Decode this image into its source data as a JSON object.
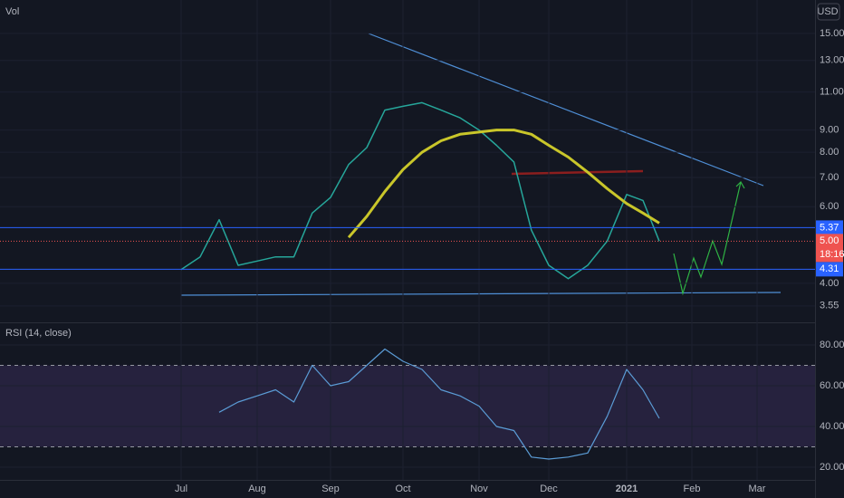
{
  "chart_data": [
    {
      "type": "line",
      "label": "Vol",
      "currency": "USD",
      "log": true,
      "grid": true,
      "categories": [
        "Jul",
        null,
        null,
        null,
        "Aug",
        null,
        null,
        null,
        "Sep",
        null,
        null,
        null,
        "Oct",
        null,
        null,
        null,
        "Nov",
        null,
        null,
        null,
        "Dec",
        null,
        null,
        null,
        "2021",
        null,
        null,
        null,
        "Feb",
        null,
        null,
        null,
        "Mar"
      ],
      "series": [
        {
          "color": "#26a69a",
          "values": [
            4.3,
            4.6,
            5.6,
            4.4,
            4.5,
            4.6,
            4.6,
            5.8,
            6.3,
            7.5,
            8.2,
            10.0,
            10.2,
            10.4,
            10.0,
            9.6,
            9.0,
            8.3,
            7.6,
            5.3,
            4.4,
            4.1,
            4.4,
            5.0,
            6.4,
            6.2,
            5.0,
            null,
            null,
            null,
            null,
            null,
            null
          ]
        },
        {
          "color": "#c9c62a",
          "values": [
            null,
            null,
            null,
            null,
            null,
            null,
            null,
            null,
            null,
            5.1,
            5.7,
            6.5,
            7.3,
            8.0,
            8.5,
            8.8,
            8.9,
            9.0,
            9.0,
            8.8,
            8.3,
            7.8,
            7.2,
            6.6,
            6.1,
            5.8,
            5.5,
            null,
            null,
            null,
            null,
            null,
            null
          ]
        }
      ],
      "ylim": [
        3.27,
        17.9
      ],
      "yticks": [
        {
          "value": 3.55,
          "label": "3.55"
        },
        {
          "value": 4,
          "label": "4.00"
        },
        {
          "value": 6,
          "label": "6.00"
        },
        {
          "value": 7,
          "label": "7.00"
        },
        {
          "value": 8,
          "label": "8.00"
        },
        {
          "value": 9,
          "label": "9.00"
        },
        {
          "value": 11,
          "label": "11.00"
        },
        {
          "value": 13,
          "label": "13.00"
        },
        {
          "value": 15,
          "label": "15.00"
        }
      ],
      "price_levels": [
        {
          "value": 5.37,
          "label": "5.37"
        },
        {
          "value": 4.31,
          "label": "4.31"
        }
      ],
      "last_price": {
        "value": 5,
        "label": "5.00"
      },
      "countdown": "18:16"
    },
    {
      "type": "line",
      "title": "RSI (14, close)",
      "color": "#5b9cd6",
      "values": [
        null,
        null,
        47,
        52,
        55,
        58,
        52,
        70,
        60,
        62,
        70,
        78,
        72,
        68,
        58,
        55,
        50,
        40,
        38,
        25,
        24,
        25,
        27,
        45,
        68,
        58,
        44,
        null,
        null,
        null,
        null,
        null,
        null
      ],
      "ylim": [
        13.8,
        90.2
      ],
      "yticks": [
        {
          "value": 20,
          "label": "20.00"
        },
        {
          "value": 40,
          "label": "40.00"
        },
        {
          "value": 60,
          "label": "60.00"
        },
        {
          "value": 80,
          "label": "80.00"
        }
      ],
      "bands": [
        70,
        30
      ]
    }
  ]
}
